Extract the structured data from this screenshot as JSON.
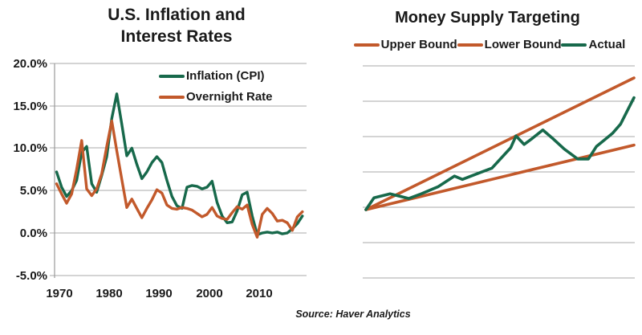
{
  "source_note": "Source: Haver Analytics",
  "colors": {
    "inflation_green": "#17694b",
    "rate_orange": "#c2592b",
    "gridline_gray": "#aaaaaa",
    "text_black": "#1a1a1a",
    "background": "#ffffff"
  },
  "chart_data": [
    {
      "type": "line",
      "title": "U.S. Inflation and Interest Rates",
      "title_lines": [
        "U.S. Inflation and",
        "Interest Rates"
      ],
      "y_unit": "percent",
      "ylim": [
        -5,
        20
      ],
      "yticks": [
        "20.0%",
        "15.0%",
        "10.0%",
        "5.0%",
        "0.0%",
        "-5.0%"
      ],
      "xticks": [
        "1970",
        "1980",
        "1990",
        "2000",
        "2010"
      ],
      "grid": true,
      "legend_position": "top-inside",
      "years": [
        1969,
        1970,
        1971,
        1972,
        1973,
        1974,
        1975,
        1976,
        1977,
        1978,
        1979,
        1980,
        1981,
        1982,
        1983,
        1984,
        1985,
        1986,
        1987,
        1988,
        1989,
        1990,
        1991,
        1992,
        1993,
        1994,
        1995,
        1996,
        1997,
        1998,
        1999,
        2000,
        2001,
        2002,
        2003,
        2004,
        2005,
        2006,
        2007,
        2008,
        2009,
        2010,
        2011,
        2012,
        2013,
        2014,
        2015,
        2016,
        2017,
        2018
      ],
      "series": [
        {
          "name": "Inflation (CPI)",
          "color": "#17694b",
          "values": [
            7.2,
            5.4,
            4.3,
            5.0,
            6.2,
            9.5,
            10.2,
            5.8,
            4.8,
            6.8,
            9.0,
            13.5,
            16.4,
            12.8,
            9.1,
            10.0,
            8.1,
            6.4,
            7.2,
            8.3,
            9.0,
            8.3,
            6.2,
            4.3,
            3.2,
            2.9,
            5.4,
            5.6,
            5.5,
            5.2,
            5.4,
            6.1,
            3.6,
            2.0,
            1.2,
            1.3,
            2.6,
            4.5,
            4.8,
            2.0,
            -0.2,
            0.0,
            0.1,
            0.0,
            0.1,
            -0.1,
            0.0,
            0.5,
            1.1,
            2.0
          ]
        },
        {
          "name": "Overnight Rate",
          "color": "#c2592b",
          "values": [
            5.8,
            4.6,
            3.5,
            4.6,
            7.5,
            10.9,
            5.2,
            4.4,
            5.2,
            7.0,
            10.2,
            13.2,
            9.7,
            6.3,
            3.0,
            4.0,
            2.9,
            1.8,
            2.9,
            3.9,
            5.1,
            4.7,
            3.3,
            2.9,
            2.8,
            3.0,
            2.9,
            2.7,
            2.3,
            1.9,
            2.2,
            3.0,
            2.0,
            1.7,
            1.6,
            2.4,
            3.1,
            2.8,
            3.3,
            1.0,
            -0.5,
            2.2,
            2.9,
            2.3,
            1.4,
            1.5,
            1.2,
            0.3,
            1.9,
            2.5
          ]
        }
      ]
    },
    {
      "type": "line",
      "title": "Money Supply Targeting",
      "axes_note": "no axis labels; 7 horizontal gridlines; values are relative index (0 = common origin, 10 = upper-bound end)",
      "x_range": [
        0,
        100
      ],
      "grid": true,
      "legend_position": "top",
      "series": [
        {
          "name": "Upper Bound",
          "color": "#c2592b",
          "points": [
            [
              0,
              0
            ],
            [
              100,
              10
            ]
          ]
        },
        {
          "name": "Lower Bound",
          "color": "#c2592b",
          "points": [
            [
              0,
              0
            ],
            [
              100,
              4.9
            ]
          ]
        },
        {
          "name": "Actual",
          "color": "#17694b",
          "points": [
            [
              0,
              0
            ],
            [
              3,
              0.9
            ],
            [
              9,
              1.2
            ],
            [
              16,
              0.85
            ],
            [
              20,
              1.15
            ],
            [
              27,
              1.75
            ],
            [
              33,
              2.55
            ],
            [
              36,
              2.3
            ],
            [
              43,
              2.85
            ],
            [
              47,
              3.15
            ],
            [
              54,
              4.7
            ],
            [
              56,
              5.6
            ],
            [
              59,
              4.95
            ],
            [
              62,
              5.4
            ],
            [
              66,
              6.05
            ],
            [
              70,
              5.35
            ],
            [
              74,
              4.6
            ],
            [
              77,
              4.15
            ],
            [
              79,
              3.85
            ],
            [
              83,
              3.85
            ],
            [
              86,
              4.8
            ],
            [
              89,
              5.3
            ],
            [
              92,
              5.8
            ],
            [
              95,
              6.5
            ],
            [
              98,
              7.7
            ],
            [
              100,
              8.5
            ]
          ]
        }
      ]
    }
  ]
}
